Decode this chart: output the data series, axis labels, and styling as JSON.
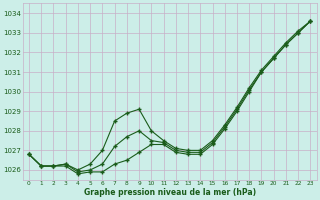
{
  "x": [
    0,
    1,
    2,
    3,
    4,
    5,
    6,
    7,
    8,
    9,
    10,
    11,
    12,
    13,
    14,
    15,
    16,
    17,
    18,
    19,
    20,
    21,
    22,
    23
  ],
  "line1": [
    1026.8,
    1026.2,
    1026.2,
    1026.2,
    1025.8,
    1025.9,
    1025.9,
    1026.3,
    1026.5,
    1026.9,
    1027.3,
    1027.3,
    1026.9,
    1026.8,
    1026.8,
    1027.3,
    1028.1,
    1029.0,
    1030.0,
    1031.0,
    1031.7,
    1032.4,
    1033.0,
    1033.6
  ],
  "line2": [
    1026.8,
    1026.2,
    1026.2,
    1026.3,
    1025.9,
    1026.0,
    1026.3,
    1027.2,
    1027.7,
    1028.0,
    1027.5,
    1027.4,
    1027.0,
    1026.9,
    1026.9,
    1027.4,
    1028.2,
    1029.1,
    1030.1,
    1031.0,
    1031.7,
    1032.4,
    1033.0,
    1033.6
  ],
  "line3": [
    1026.8,
    1026.2,
    1026.2,
    1026.3,
    1026.0,
    1026.3,
    1027.0,
    1028.5,
    1028.9,
    1029.1,
    1028.0,
    1027.5,
    1027.1,
    1027.0,
    1027.0,
    1027.5,
    1028.3,
    1029.2,
    1030.2,
    1031.1,
    1031.8,
    1032.5,
    1033.1,
    1033.6
  ],
  "bg_color": "#cceee8",
  "line_color": "#1a5c1a",
  "grid_color": "#c8afc8",
  "label_color": "#1a5c1a",
  "ylabel_ticks": [
    1026,
    1027,
    1028,
    1029,
    1030,
    1031,
    1032,
    1033,
    1034
  ],
  "ylim": [
    1025.5,
    1034.5
  ],
  "xlim": [
    -0.5,
    23.5
  ],
  "xlabel": "Graphe pression niveau de la mer (hPa)",
  "xticks": [
    0,
    1,
    2,
    3,
    4,
    5,
    6,
    7,
    8,
    9,
    10,
    11,
    12,
    13,
    14,
    15,
    16,
    17,
    18,
    19,
    20,
    21,
    22,
    23
  ]
}
